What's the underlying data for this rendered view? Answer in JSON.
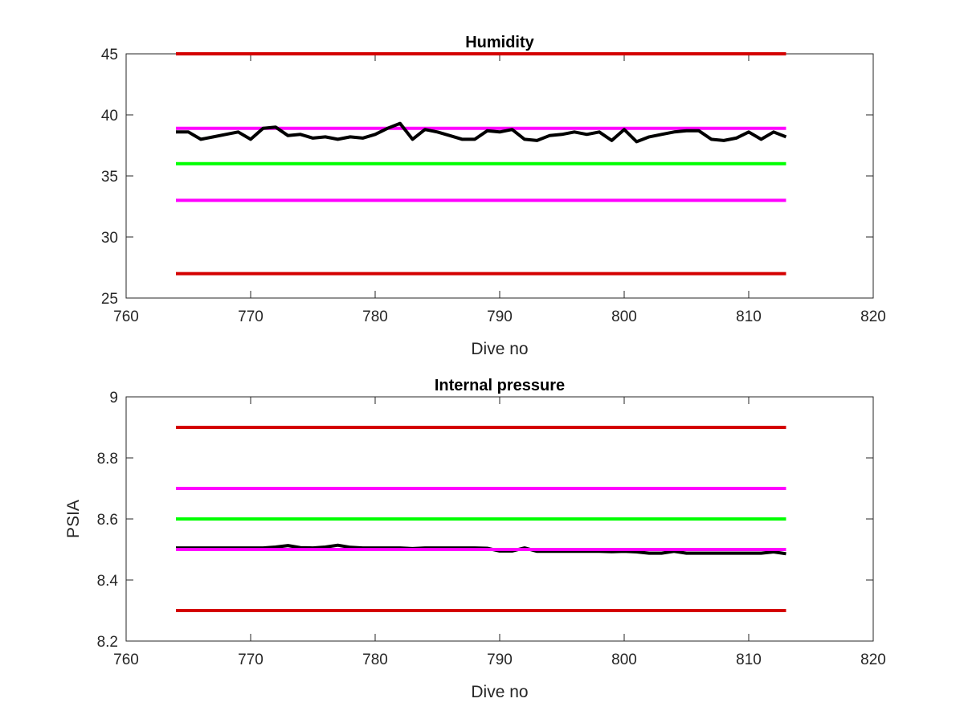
{
  "chart_data": [
    {
      "type": "line",
      "title": "Humidity",
      "xlabel": "Dive no",
      "ylabel": "",
      "xlim": [
        760,
        820
      ],
      "ylim": [
        25,
        45
      ],
      "xticks": [
        760,
        770,
        780,
        790,
        800,
        810,
        820
      ],
      "yticks": [
        25,
        30,
        35,
        40,
        45
      ],
      "grid": false,
      "limit_lines": [
        {
          "value": 45,
          "color": "#d40000",
          "x_range": [
            764,
            813
          ]
        },
        {
          "value": 38.9,
          "color": "#ff00ff",
          "x_range": [
            764,
            813
          ]
        },
        {
          "value": 36,
          "color": "#00ff00",
          "x_range": [
            764,
            813
          ]
        },
        {
          "value": 33,
          "color": "#ff00ff",
          "x_range": [
            764,
            813
          ]
        },
        {
          "value": 27,
          "color": "#d40000",
          "x_range": [
            764,
            813
          ]
        }
      ],
      "series": [
        {
          "color": "#000000",
          "x": [
            764,
            765,
            766,
            767,
            768,
            769,
            770,
            771,
            772,
            773,
            774,
            775,
            776,
            777,
            778,
            779,
            780,
            781,
            782,
            783,
            784,
            785,
            786,
            787,
            788,
            789,
            790,
            791,
            792,
            793,
            794,
            795,
            796,
            797,
            798,
            799,
            800,
            801,
            802,
            803,
            804,
            805,
            806,
            807,
            808,
            809,
            810,
            811,
            812,
            813
          ],
          "y": [
            38.6,
            38.6,
            38.0,
            38.2,
            38.4,
            38.6,
            38.0,
            38.9,
            39.0,
            38.3,
            38.4,
            38.1,
            38.2,
            38.0,
            38.2,
            38.1,
            38.4,
            38.9,
            39.3,
            38.0,
            38.8,
            38.6,
            38.3,
            38.0,
            38.0,
            38.7,
            38.6,
            38.8,
            38.0,
            37.9,
            38.3,
            38.4,
            38.6,
            38.4,
            38.6,
            37.9,
            38.8,
            37.8,
            38.2,
            38.4,
            38.6,
            38.7,
            38.7,
            38.0,
            37.9,
            38.1,
            38.6,
            38.0,
            38.6,
            38.2
          ]
        }
      ]
    },
    {
      "type": "line",
      "title": "Internal pressure",
      "xlabel": "Dive no",
      "ylabel": "PSIA",
      "xlim": [
        760,
        820
      ],
      "ylim": [
        8.2,
        9
      ],
      "xticks": [
        760,
        770,
        780,
        790,
        800,
        810,
        820
      ],
      "yticks": [
        8.2,
        8.4,
        8.6,
        8.8,
        9
      ],
      "grid": false,
      "limit_lines": [
        {
          "value": 8.9,
          "color": "#d40000",
          "x_range": [
            764,
            813
          ]
        },
        {
          "value": 8.7,
          "color": "#ff00ff",
          "x_range": [
            764,
            813
          ]
        },
        {
          "value": 8.6,
          "color": "#00ff00",
          "x_range": [
            764,
            813
          ]
        },
        {
          "value": 8.3,
          "color": "#d40000",
          "x_range": [
            764,
            813
          ]
        }
      ],
      "series": [
        {
          "color": "#000000",
          "x": [
            764,
            765,
            766,
            767,
            768,
            769,
            770,
            771,
            772,
            773,
            774,
            775,
            776,
            777,
            778,
            779,
            780,
            781,
            782,
            783,
            784,
            785,
            786,
            787,
            788,
            789,
            790,
            791,
            792,
            793,
            794,
            795,
            796,
            797,
            798,
            799,
            800,
            801,
            802,
            803,
            804,
            805,
            806,
            807,
            808,
            809,
            810,
            811,
            812,
            813
          ],
          "y": [
            8.505,
            8.505,
            8.505,
            8.505,
            8.505,
            8.505,
            8.505,
            8.505,
            8.508,
            8.513,
            8.506,
            8.505,
            8.508,
            8.514,
            8.507,
            8.505,
            8.505,
            8.505,
            8.505,
            8.503,
            8.505,
            8.505,
            8.505,
            8.505,
            8.505,
            8.504,
            8.495,
            8.495,
            8.505,
            8.494,
            8.494,
            8.494,
            8.494,
            8.494,
            8.494,
            8.493,
            8.494,
            8.492,
            8.488,
            8.488,
            8.494,
            8.488,
            8.488,
            8.488,
            8.488,
            8.488,
            8.488,
            8.488,
            8.492,
            8.486
          ]
        },
        {
          "color": "#ff00ff",
          "x": [
            764,
            813
          ],
          "y": [
            8.5,
            8.5
          ]
        }
      ]
    }
  ]
}
